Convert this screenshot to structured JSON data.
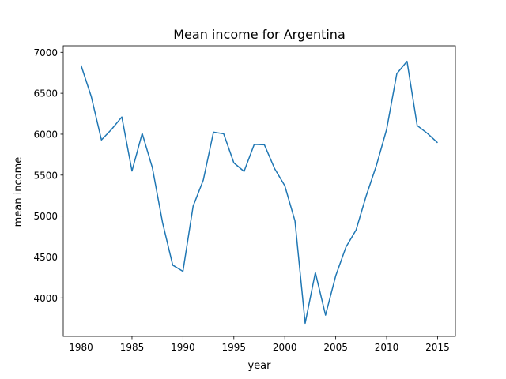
{
  "chart_data": {
    "type": "line",
    "title": "Mean income for Argentina",
    "xlabel": "year",
    "ylabel": "mean income",
    "xlim": [
      1978.25,
      2016.75
    ],
    "ylim": [
      3530,
      7080
    ],
    "xticks": [
      1980,
      1985,
      1990,
      1995,
      2000,
      2005,
      2010,
      2015
    ],
    "yticks": [
      4000,
      4500,
      5000,
      5500,
      6000,
      6500,
      7000
    ],
    "grid": false,
    "series": [
      {
        "color": "#1f77b4",
        "x": [
          1980,
          1981,
          1982,
          1983,
          1984,
          1985,
          1986,
          1987,
          1988,
          1989,
          1990,
          1991,
          1992,
          1993,
          1994,
          1995,
          1996,
          1997,
          1998,
          1999,
          2000,
          2001,
          2002,
          2003,
          2004,
          2005,
          2006,
          2007,
          2008,
          2009,
          2010,
          2011,
          2012,
          2013,
          2014,
          2015
        ],
        "y": [
          6840,
          6460,
          5930,
          6060,
          6210,
          5550,
          6010,
          5590,
          4920,
          4400,
          4325,
          5120,
          5440,
          6025,
          6005,
          5650,
          5545,
          5875,
          5870,
          5580,
          5370,
          4940,
          3690,
          4310,
          3790,
          4270,
          4620,
          4830,
          5250,
          5620,
          6060,
          6740,
          6890,
          6105,
          6010,
          5895
        ]
      }
    ]
  }
}
